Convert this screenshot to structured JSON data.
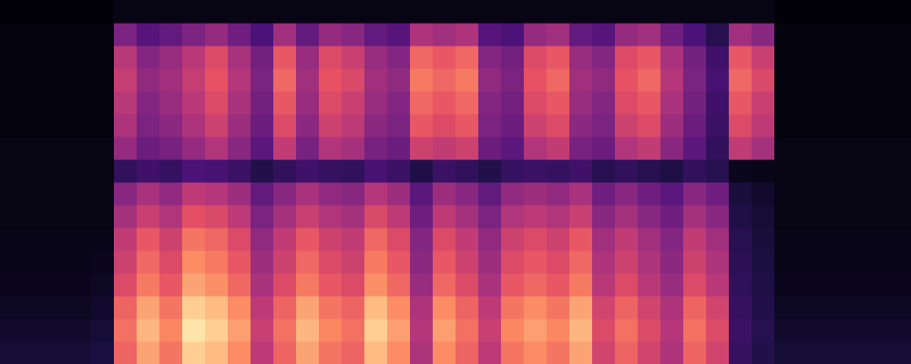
{
  "chart_data": {
    "type": "heatmap",
    "tick_labels": false,
    "zlim": [
      0,
      1
    ],
    "cells": [
      [
        0.1,
        0.08,
        0.06,
        0.05,
        0.04,
        0.04,
        0.03,
        0.03,
        0.03,
        0.03,
        0.02,
        0.02,
        0.02,
        0.02,
        0.02,
        0.01
      ],
      [
        0.1,
        0.08,
        0.06,
        0.05,
        0.04,
        0.04,
        0.03,
        0.03,
        0.03,
        0.03,
        0.02,
        0.02,
        0.02,
        0.02,
        0.02,
        0.01
      ],
      [
        0.1,
        0.08,
        0.06,
        0.05,
        0.04,
        0.04,
        0.03,
        0.03,
        0.03,
        0.03,
        0.02,
        0.02,
        0.02,
        0.02,
        0.02,
        0.01
      ],
      [
        0.1,
        0.08,
        0.06,
        0.05,
        0.04,
        0.04,
        0.03,
        0.03,
        0.03,
        0.03,
        0.02,
        0.02,
        0.02,
        0.02,
        0.02,
        0.01
      ],
      [
        0.12,
        0.1,
        0.08,
        0.06,
        0.05,
        0.04,
        0.03,
        0.03,
        0.03,
        0.03,
        0.02,
        0.02,
        0.02,
        0.02,
        0.02,
        0.01
      ],
      [
        0.67,
        0.7,
        0.67,
        0.6,
        0.56,
        0.53,
        0.46,
        0.39,
        0.18,
        0.42,
        0.48,
        0.51,
        0.54,
        0.51,
        0.36,
        0.03
      ],
      [
        0.81,
        0.85,
        0.81,
        0.72,
        0.68,
        0.64,
        0.55,
        0.47,
        0.21,
        0.32,
        0.36,
        0.38,
        0.41,
        0.38,
        0.27,
        0.03
      ],
      [
        0.71,
        0.75,
        0.71,
        0.64,
        0.6,
        0.56,
        0.49,
        0.41,
        0.19,
        0.35,
        0.4,
        0.43,
        0.45,
        0.43,
        0.3,
        0.03
      ],
      [
        0.9,
        0.95,
        0.9,
        0.81,
        0.76,
        0.71,
        0.62,
        0.52,
        0.24,
        0.42,
        0.48,
        0.51,
        0.54,
        0.51,
        0.36,
        0.03
      ],
      [
        0.86,
        0.9,
        0.86,
        0.77,
        0.72,
        0.68,
        0.59,
        0.5,
        0.23,
        0.49,
        0.56,
        0.6,
        0.63,
        0.6,
        0.42,
        0.03
      ],
      [
        0.76,
        0.8,
        0.76,
        0.68,
        0.64,
        0.6,
        0.52,
        0.44,
        0.2,
        0.39,
        0.44,
        0.47,
        0.5,
        0.47,
        0.33,
        0.03
      ],
      [
        0.52,
        0.55,
        0.52,
        0.47,
        0.44,
        0.41,
        0.36,
        0.3,
        0.14,
        0.28,
        0.32,
        0.34,
        0.36,
        0.34,
        0.24,
        0.03
      ],
      [
        0.67,
        0.7,
        0.67,
        0.6,
        0.56,
        0.53,
        0.46,
        0.39,
        0.18,
        0.53,
        0.6,
        0.64,
        0.68,
        0.64,
        0.45,
        0.03
      ],
      [
        0.81,
        0.85,
        0.81,
        0.72,
        0.68,
        0.64,
        0.55,
        0.47,
        0.21,
        0.35,
        0.4,
        0.43,
        0.45,
        0.43,
        0.3,
        0.03
      ],
      [
        0.71,
        0.75,
        0.71,
        0.64,
        0.6,
        0.56,
        0.49,
        0.41,
        0.19,
        0.49,
        0.56,
        0.6,
        0.63,
        0.6,
        0.42,
        0.03
      ],
      [
        0.67,
        0.7,
        0.67,
        0.6,
        0.56,
        0.53,
        0.46,
        0.39,
        0.18,
        0.46,
        0.52,
        0.55,
        0.59,
        0.55,
        0.39,
        0.03
      ],
      [
        0.86,
        0.9,
        0.86,
        0.77,
        0.72,
        0.68,
        0.59,
        0.5,
        0.23,
        0.35,
        0.4,
        0.43,
        0.45,
        0.43,
        0.3,
        0.03
      ],
      [
        0.76,
        0.8,
        0.76,
        0.68,
        0.64,
        0.6,
        0.52,
        0.44,
        0.2,
        0.32,
        0.36,
        0.38,
        0.41,
        0.38,
        0.27,
        0.03
      ],
      [
        0.48,
        0.5,
        0.48,
        0.43,
        0.4,
        0.38,
        0.33,
        0.28,
        0.13,
        0.56,
        0.64,
        0.68,
        0.72,
        0.68,
        0.48,
        0.03
      ],
      [
        0.76,
        0.8,
        0.76,
        0.68,
        0.64,
        0.6,
        0.52,
        0.44,
        0.2,
        0.53,
        0.6,
        0.64,
        0.68,
        0.64,
        0.45,
        0.03
      ],
      [
        0.67,
        0.7,
        0.67,
        0.6,
        0.56,
        0.53,
        0.46,
        0.39,
        0.18,
        0.56,
        0.64,
        0.68,
        0.72,
        0.68,
        0.48,
        0.03
      ],
      [
        0.52,
        0.55,
        0.52,
        0.47,
        0.44,
        0.41,
        0.36,
        0.3,
        0.14,
        0.32,
        0.36,
        0.38,
        0.41,
        0.38,
        0.27,
        0.03
      ],
      [
        0.71,
        0.75,
        0.71,
        0.64,
        0.6,
        0.56,
        0.49,
        0.41,
        0.19,
        0.28,
        0.32,
        0.34,
        0.36,
        0.34,
        0.24,
        0.03
      ],
      [
        0.76,
        0.8,
        0.76,
        0.68,
        0.64,
        0.6,
        0.52,
        0.44,
        0.2,
        0.49,
        0.56,
        0.6,
        0.63,
        0.6,
        0.42,
        0.03
      ],
      [
        0.71,
        0.75,
        0.71,
        0.64,
        0.6,
        0.56,
        0.49,
        0.41,
        0.19,
        0.53,
        0.6,
        0.64,
        0.68,
        0.64,
        0.45,
        0.03
      ],
      [
        0.81,
        0.85,
        0.81,
        0.72,
        0.68,
        0.64,
        0.55,
        0.47,
        0.21,
        0.35,
        0.4,
        0.43,
        0.45,
        0.43,
        0.3,
        0.03
      ],
      [
        0.57,
        0.6,
        0.57,
        0.51,
        0.48,
        0.45,
        0.39,
        0.33,
        0.15,
        0.32,
        0.36,
        0.38,
        0.41,
        0.38,
        0.27,
        0.03
      ],
      [
        0.67,
        0.7,
        0.67,
        0.6,
        0.56,
        0.53,
        0.46,
        0.39,
        0.18,
        0.49,
        0.56,
        0.6,
        0.63,
        0.6,
        0.42,
        0.03
      ],
      [
        0.57,
        0.6,
        0.57,
        0.51,
        0.48,
        0.45,
        0.39,
        0.33,
        0.15,
        0.53,
        0.6,
        0.64,
        0.68,
        0.64,
        0.45,
        0.03
      ],
      [
        0.48,
        0.5,
        0.48,
        0.43,
        0.4,
        0.38,
        0.33,
        0.28,
        0.13,
        0.39,
        0.44,
        0.47,
        0.5,
        0.47,
        0.33,
        0.03
      ],
      [
        0.67,
        0.7,
        0.67,
        0.6,
        0.56,
        0.53,
        0.46,
        0.39,
        0.18,
        0.28,
        0.32,
        0.34,
        0.36,
        0.34,
        0.24,
        0.03
      ],
      [
        0.57,
        0.6,
        0.57,
        0.51,
        0.48,
        0.45,
        0.39,
        0.33,
        0.15,
        0.18,
        0.2,
        0.21,
        0.23,
        0.21,
        0.15,
        0.03
      ],
      [
        0.19,
        0.2,
        0.19,
        0.17,
        0.16,
        0.15,
        0.13,
        0.11,
        0.05,
        0.53,
        0.6,
        0.64,
        0.68,
        0.64,
        0.45,
        0.03
      ],
      [
        0.14,
        0.15,
        0.14,
        0.13,
        0.12,
        0.11,
        0.1,
        0.08,
        0.04,
        0.46,
        0.52,
        0.55,
        0.59,
        0.55,
        0.39,
        0.03
      ],
      [
        0.1,
        0.08,
        0.06,
        0.05,
        0.04,
        0.04,
        0.03,
        0.03,
        0.03,
        0.03,
        0.02,
        0.02,
        0.02,
        0.02,
        0.02,
        0.01
      ],
      [
        0.1,
        0.08,
        0.06,
        0.05,
        0.04,
        0.04,
        0.03,
        0.03,
        0.03,
        0.03,
        0.02,
        0.02,
        0.02,
        0.02,
        0.02,
        0.01
      ],
      [
        0.1,
        0.08,
        0.06,
        0.05,
        0.04,
        0.04,
        0.03,
        0.03,
        0.03,
        0.03,
        0.02,
        0.02,
        0.02,
        0.02,
        0.02,
        0.01
      ],
      [
        0.1,
        0.08,
        0.06,
        0.05,
        0.04,
        0.04,
        0.03,
        0.03,
        0.03,
        0.03,
        0.02,
        0.02,
        0.02,
        0.02,
        0.02,
        0.01
      ],
      [
        0.1,
        0.08,
        0.06,
        0.05,
        0.04,
        0.04,
        0.03,
        0.03,
        0.03,
        0.03,
        0.02,
        0.02,
        0.02,
        0.02,
        0.02,
        0.01
      ],
      [
        0.1,
        0.08,
        0.06,
        0.05,
        0.04,
        0.04,
        0.03,
        0.03,
        0.03,
        0.03,
        0.02,
        0.02,
        0.02,
        0.02,
        0.02,
        0.01
      ]
    ]
  }
}
